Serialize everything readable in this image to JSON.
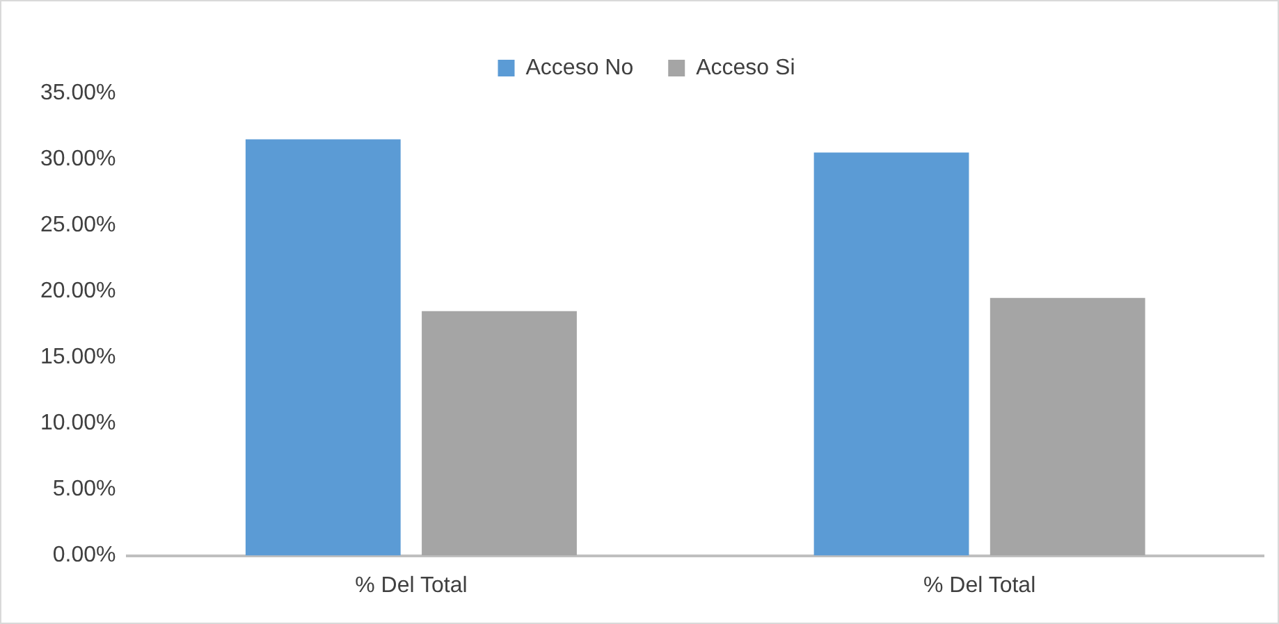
{
  "chart_data": {
    "type": "bar",
    "categories": [
      "% Del Total",
      "% Del Total"
    ],
    "series": [
      {
        "name": "Acceso No",
        "color": "#5b9bd5",
        "values": [
          31.5,
          30.5
        ]
      },
      {
        "name": "Acceso Si",
        "color": "#a5a5a5",
        "values": [
          18.5,
          19.5
        ]
      }
    ],
    "ylim": [
      0,
      35
    ],
    "yticks": [
      {
        "value": 0,
        "label": "0.00%"
      },
      {
        "value": 5,
        "label": "5.00%"
      },
      {
        "value": 10,
        "label": "10.00%"
      },
      {
        "value": 15,
        "label": "15.00%"
      },
      {
        "value": 20,
        "label": "20.00%"
      },
      {
        "value": 25,
        "label": "25.00%"
      },
      {
        "value": 30,
        "label": "30.00%"
      },
      {
        "value": 35,
        "label": "35.00%"
      }
    ],
    "grid": false,
    "legend": "top"
  }
}
